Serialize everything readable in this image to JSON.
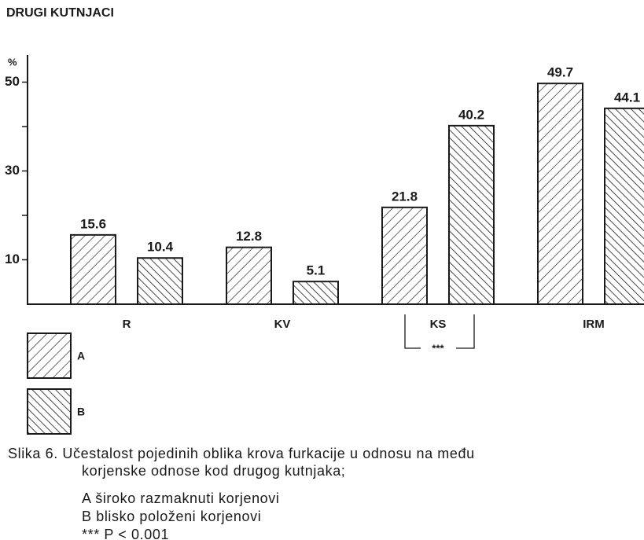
{
  "chart_data": {
    "type": "bar",
    "title": "DRUGI KUTNJACI",
    "y_label": "%",
    "categories": [
      "R",
      "KV",
      "KS",
      "IRM"
    ],
    "series": [
      {
        "name": "A",
        "color": "#1a1a1a",
        "hatch": "forward",
        "values": [
          15.6,
          12.8,
          21.8,
          49.7
        ]
      },
      {
        "name": "B",
        "color": "#1a1a1a",
        "hatch": "backward",
        "values": [
          10.4,
          5.1,
          40.2,
          44.1
        ]
      }
    ],
    "ylim": [
      0,
      56
    ],
    "yticks": [
      10,
      30,
      50
    ],
    "yminor_ticks": [
      20,
      40
    ],
    "annotation": "***",
    "caption": [
      "Slika 6. Učestalost pojedinih oblika krova furkacije u odnosu na među",
      "korjenske odnose kod drugog kutnjaka;"
    ],
    "notes": [
      "A široko razmaknuti korjenovi",
      "B blisko položeni korjenovi",
      "*** P < 0.001"
    ]
  }
}
